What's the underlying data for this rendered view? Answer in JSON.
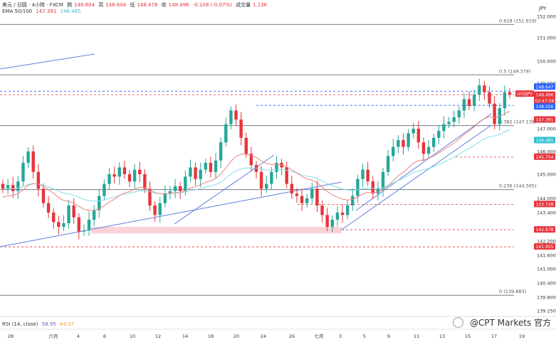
{
  "header": {
    "symbol": "美元 / 日圓 · 4小時 · FXCM",
    "open_label": "開",
    "open": "148.604",
    "high_label": "高",
    "high": "148.604",
    "low_label": "低",
    "low": "148.478",
    "close_label": "收",
    "close": "148.496",
    "change": "-0.108 (-0.07%)",
    "volume_label": "成交量",
    "volume": "1.13K",
    "ema_label": "EMA 50/100",
    "ema50": "147.391",
    "ema100": "146.485"
  },
  "rsi": {
    "label": "RSI (14, close)",
    "value": "58.95",
    "ma": "64.37"
  },
  "currency": "JPY",
  "watermark": "@CPT Markets 官方",
  "colors": {
    "up": "#26a69a",
    "down": "#e5353b",
    "ema50": "#f08080",
    "ema100": "#80deea",
    "trend": "#5b7fde",
    "fib": "#787b86",
    "zone": "#f8c8cc"
  },
  "chart_data": {
    "type": "candlestick",
    "y_axis_ticks": [
      "152.000",
      "151.000",
      "150.000",
      "149.000",
      "147.000",
      "146.000",
      "145.000",
      "144.000",
      "143.400",
      "142.200",
      "141.600",
      "141.000",
      "140.400",
      "139.800",
      "139.250"
    ],
    "x_axis_ticks": [
      "28",
      "六月",
      "4",
      "6",
      "10",
      "12",
      "14",
      "18",
      "20",
      "24",
      "26",
      "七月",
      "3",
      "5",
      "9",
      "11",
      "13",
      "15",
      "17",
      "19"
    ],
    "fib_levels": [
      {
        "label": "0.618 (151.619)",
        "value": 151.619
      },
      {
        "label": "0.5 (149.379)",
        "value": 149.379
      },
      {
        "label": "0.382 (147.138)",
        "value": 147.138
      },
      {
        "label": "0.236 (144.365)",
        "value": 144.365
      },
      {
        "label": "0 (139.883)",
        "value": 139.883
      }
    ],
    "price_labels": [
      {
        "text": "148.647",
        "value": 148.647,
        "color": "#2962ff"
      },
      {
        "text": "USDJPY",
        "value": 148.496,
        "color": "#e5353b"
      },
      {
        "text": "148.496",
        "value": 148.496,
        "color": "#e5353b"
      },
      {
        "text": "02:47:58",
        "value": 148.496,
        "color": "#e5353b"
      },
      {
        "text": "148.026",
        "value": 148.026,
        "color": "#2962ff"
      },
      {
        "text": "147.391",
        "value": 147.391,
        "color": "#e5353b"
      },
      {
        "text": "146.485",
        "value": 146.485,
        "color": "#30c0d0"
      },
      {
        "text": "145.754",
        "value": 145.754,
        "color": "#e5353b"
      },
      {
        "text": "143.749",
        "value": 143.749,
        "color": "#e5353b"
      },
      {
        "text": "142.678",
        "value": 142.678,
        "color": "#e5353b"
      },
      {
        "text": "141.955",
        "value": 141.955,
        "color": "#e5353b"
      }
    ],
    "dashed_levels": [
      148.647,
      148.496,
      148.026,
      145.754,
      143.749,
      142.678,
      141.955
    ],
    "support_zone": [
      142.52,
      142.8
    ],
    "close_series": [
      144.4,
      144.55,
      144.3,
      144.7,
      145.5,
      146.0,
      145.1,
      144.4,
      143.8,
      143.4,
      143.0,
      142.8,
      142.95,
      143.7,
      143.2,
      142.6,
      142.65,
      143.1,
      143.5,
      144.1,
      144.6,
      145.0,
      144.9,
      145.3,
      145.0,
      144.7,
      145.2,
      145.0,
      144.4,
      143.7,
      143.3,
      143.8,
      144.2,
      144.3,
      144.5,
      144.3,
      144.9,
      145.3,
      144.8,
      145.2,
      145.5,
      145.1,
      145.6,
      146.4,
      147.2,
      147.8,
      147.4,
      146.6,
      145.9,
      145.4,
      145.1,
      144.4,
      144.6,
      145.1,
      145.5,
      145.3,
      144.6,
      144.2,
      144.1,
      143.8,
      144.0,
      144.4,
      143.7,
      143.3,
      142.8,
      143.1,
      143.4,
      143.3,
      143.7,
      144.1,
      144.8,
      145.2,
      144.7,
      144.2,
      144.4,
      145.1,
      145.8,
      146.2,
      146.5,
      146.2,
      146.8,
      147.0,
      146.4,
      145.9,
      146.2,
      146.6,
      146.9,
      147.2,
      147.3,
      147.5,
      147.8,
      148.3,
      148.0,
      148.5,
      148.9,
      148.6,
      148.1,
      147.2,
      147.9,
      148.6,
      148.5
    ]
  }
}
